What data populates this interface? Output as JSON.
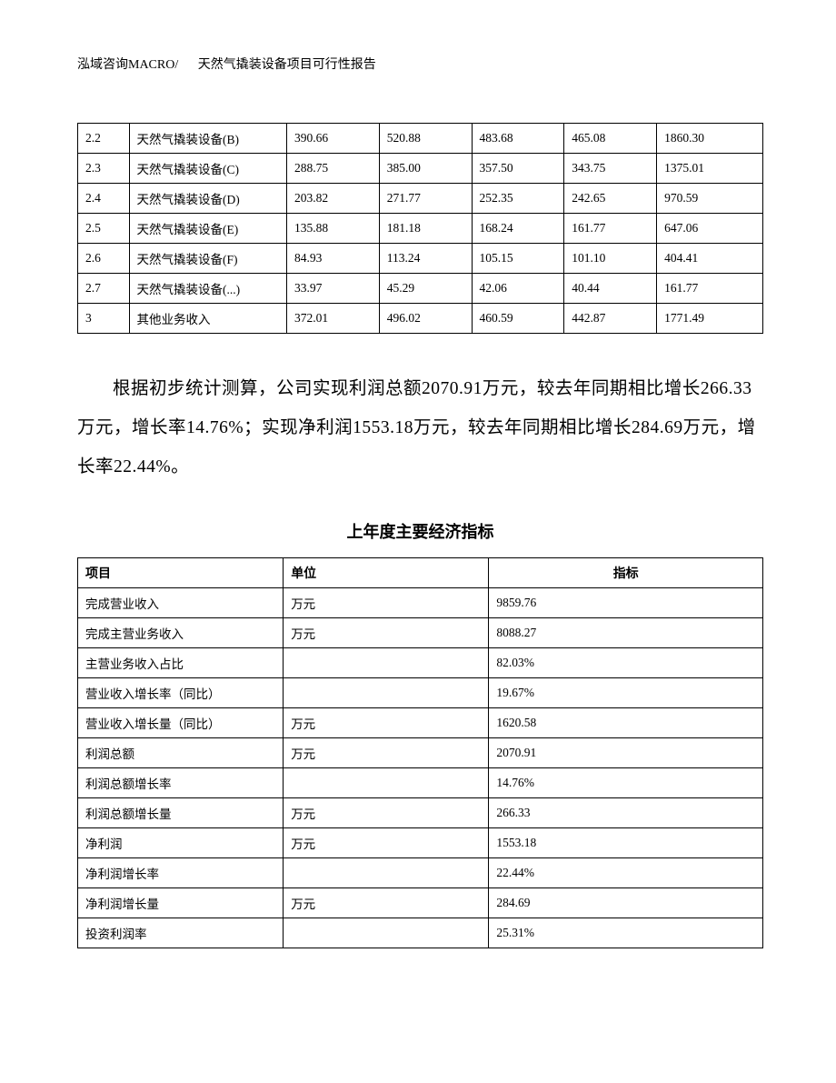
{
  "header": {
    "left": "泓域咨询MACRO/",
    "right": "天然气撬装设备项目可行性报告"
  },
  "table1": {
    "rows": [
      {
        "c0": "2.2",
        "c1": "天然气撬装设备(B)",
        "c2": "390.66",
        "c3": "520.88",
        "c4": "483.68",
        "c5": "465.08",
        "c6": "1860.30"
      },
      {
        "c0": "2.3",
        "c1": "天然气撬装设备(C)",
        "c2": "288.75",
        "c3": "385.00",
        "c4": "357.50",
        "c5": "343.75",
        "c6": "1375.01"
      },
      {
        "c0": "2.4",
        "c1": "天然气撬装设备(D)",
        "c2": "203.82",
        "c3": "271.77",
        "c4": "252.35",
        "c5": "242.65",
        "c6": "970.59"
      },
      {
        "c0": "2.5",
        "c1": "天然气撬装设备(E)",
        "c2": "135.88",
        "c3": "181.18",
        "c4": "168.24",
        "c5": "161.77",
        "c6": "647.06"
      },
      {
        "c0": "2.6",
        "c1": "天然气撬装设备(F)",
        "c2": "84.93",
        "c3": "113.24",
        "c4": "105.15",
        "c5": "101.10",
        "c6": "404.41"
      },
      {
        "c0": "2.7",
        "c1": "天然气撬装设备(...)",
        "c2": "33.97",
        "c3": "45.29",
        "c4": "42.06",
        "c5": "40.44",
        "c6": "161.77"
      },
      {
        "c0": "3",
        "c1": "其他业务收入",
        "c2": "372.01",
        "c3": "496.02",
        "c4": "460.59",
        "c5": "442.87",
        "c6": "1771.49"
      }
    ]
  },
  "paragraph": "根据初步统计测算，公司实现利润总额2070.91万元，较去年同期相比增长266.33万元，增长率14.76%；实现净利润1553.18万元，较去年同期相比增长284.69万元，增长率22.44%。",
  "table2": {
    "title": "上年度主要经济指标",
    "headers": {
      "h0": "项目",
      "h1": "单位",
      "h2": "指标"
    },
    "rows": [
      {
        "c0": "完成营业收入",
        "c1": "万元",
        "c2": "9859.76"
      },
      {
        "c0": "完成主营业务收入",
        "c1": "万元",
        "c2": "8088.27"
      },
      {
        "c0": "主营业务收入占比",
        "c1": "",
        "c2": "82.03%"
      },
      {
        "c0": "营业收入增长率（同比）",
        "c1": "",
        "c2": "19.67%"
      },
      {
        "c0": "营业收入增长量（同比）",
        "c1": "万元",
        "c2": "1620.58"
      },
      {
        "c0": "利润总额",
        "c1": "万元",
        "c2": "2070.91"
      },
      {
        "c0": "利润总额增长率",
        "c1": "",
        "c2": "14.76%"
      },
      {
        "c0": "利润总额增长量",
        "c1": "万元",
        "c2": "266.33"
      },
      {
        "c0": "净利润",
        "c1": "万元",
        "c2": "1553.18"
      },
      {
        "c0": "净利润增长率",
        "c1": "",
        "c2": "22.44%"
      },
      {
        "c0": "净利润增长量",
        "c1": "万元",
        "c2": "284.69"
      },
      {
        "c0": "投资利润率",
        "c1": "",
        "c2": "25.31%"
      }
    ]
  }
}
